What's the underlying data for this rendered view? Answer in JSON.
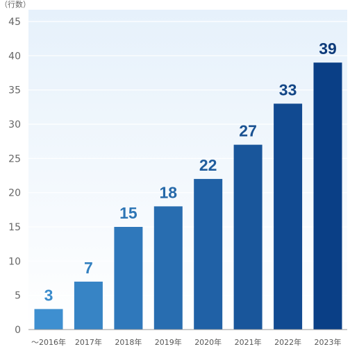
{
  "chart_data": {
    "type": "bar",
    "unit_label": "（行数）",
    "categories": [
      "～2016年",
      "2017年",
      "2018年",
      "2019年",
      "2020年",
      "2021年",
      "2022年",
      "2023年"
    ],
    "values": [
      3,
      7,
      15,
      18,
      22,
      27,
      33,
      39
    ],
    "value_labels": [
      "3",
      "7",
      "15",
      "18",
      "22",
      "27",
      "33",
      "39"
    ],
    "yticks": [
      0,
      5,
      10,
      15,
      20,
      25,
      30,
      35,
      40,
      45
    ],
    "ylim": [
      0,
      45
    ],
    "grid": true,
    "colors": {
      "bar_start": "#3e8fd0",
      "bar_end": "#0a3f86",
      "label_start": "#3a8ccc",
      "label_end": "#0c3a7a",
      "plot_bg_top": "#e6f1fb",
      "plot_bg_bottom": "#ffffff",
      "grid": "#ffffff",
      "axis": "#999999"
    }
  }
}
